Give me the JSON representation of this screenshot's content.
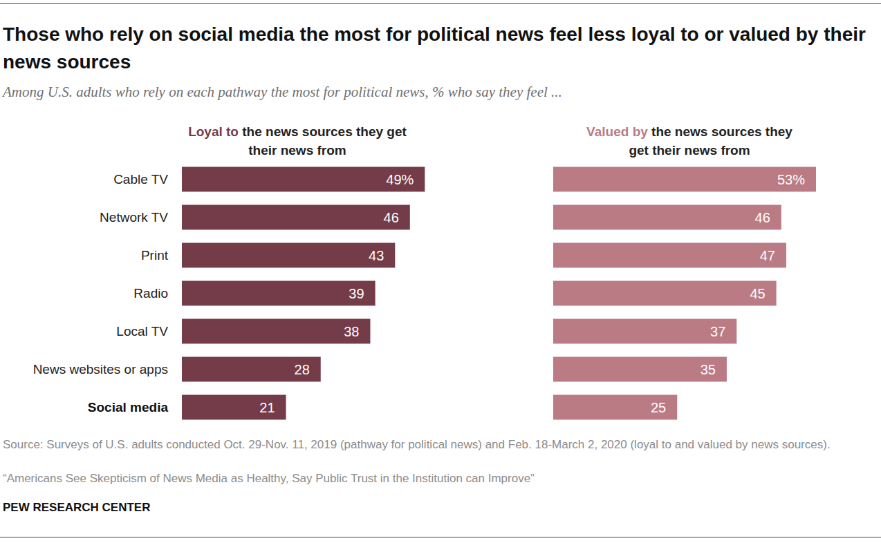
{
  "title": "Those who rely on social media the most for political news feel less loyal to or valued by their news sources",
  "subtitle": "Among U.S. adults who rely on each pathway the most for political news, % who say they feel ...",
  "source": "Source: Surveys of U.S. adults conducted Oct. 29-Nov. 11, 2019 (pathway for political news) and Feb. 18-March 2, 2020 (loyal to and valued by news sources).",
  "note": "“Americans See Skepticism of News Media as Healthy, Say Public Trust in the Institution can Improve”",
  "credit": "PEW RESEARCH CENTER",
  "chart_data": [
    {
      "type": "bar",
      "orientation": "horizontal",
      "title": "Loyal to the news sources they get their news from",
      "categories": [
        "Cable TV",
        "Network TV",
        "Print",
        "Radio",
        "Local TV",
        "News websites or apps",
        "Social media"
      ],
      "values": [
        49,
        46,
        43,
        39,
        38,
        28,
        21
      ],
      "value_labels": [
        "49%",
        "46",
        "43",
        "39",
        "38",
        "28",
        "21"
      ],
      "color": "#743c48",
      "xlim": [
        0,
        53
      ],
      "data_labels": true,
      "tick_labels": "y",
      "grid": false
    },
    {
      "type": "bar",
      "orientation": "horizontal",
      "title": "Valued by the news sources they get their news from",
      "categories": [
        "Cable TV",
        "Network TV",
        "Print",
        "Radio",
        "Local TV",
        "News websites or apps",
        "Social media"
      ],
      "values": [
        53,
        46,
        47,
        45,
        37,
        35,
        25
      ],
      "value_labels": [
        "53%",
        "46",
        "47",
        "45",
        "37",
        "35",
        "25"
      ],
      "color": "#bb7b85",
      "xlim": [
        0,
        53
      ],
      "data_labels": true,
      "tick_labels": false,
      "grid": false
    }
  ]
}
